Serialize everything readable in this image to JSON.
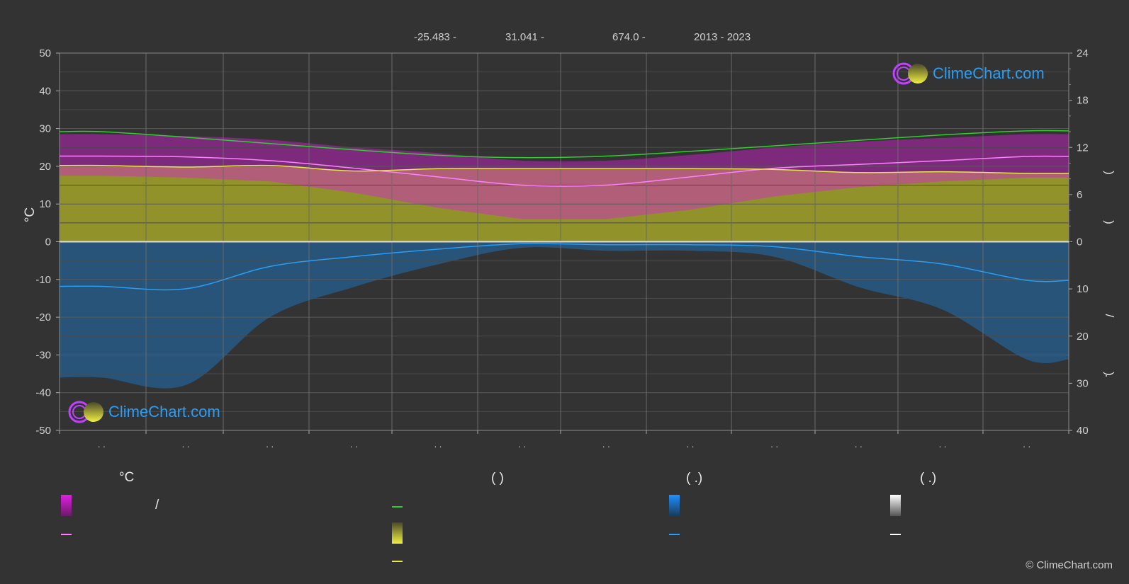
{
  "header": {
    "lat": "-25.483 -",
    "lon": "31.041 -",
    "elev": "674.0 -",
    "years": "2013 - 2023"
  },
  "logo_text": "ClimeChart.com",
  "copyright": "© ClimeChart.com",
  "legend": {
    "col1_title": "°C",
    "col1_slash": "/",
    "col2_title": "(          )",
    "col3_title": "(   .)",
    "col4_title": "(   .)"
  },
  "colors": {
    "background": "#333333",
    "grid": "#5a5a5a",
    "temp_range": "#d81ed8",
    "temp_mean": "#ff80ff",
    "daylight": "#33cc33",
    "sunshine_fill": "#a3a32a",
    "sunshine_line": "#e8e84a",
    "rain_fill": "#1e6fb0",
    "rain_line": "#2a9df4",
    "zero_line": "#dddddd"
  },
  "chart_data": {
    "type": "line",
    "y_left": {
      "label": "°C",
      "ylim": [
        -50,
        50
      ],
      "ticks": [
        50,
        40,
        30,
        20,
        10,
        0,
        -10,
        -20,
        -30,
        -40,
        -50
      ]
    },
    "y_right_top": {
      "ticks": [
        24,
        18,
        12,
        6,
        0
      ],
      "range": [
        0,
        24
      ]
    },
    "y_right_bottom": {
      "ticks": [
        0,
        10,
        20,
        30,
        40
      ],
      "range": [
        0,
        40
      ]
    },
    "x": {
      "months": 12,
      "tick_labels": [
        ". .",
        ". .",
        ". .",
        ". .",
        ". .",
        ". .",
        ". .",
        ". .",
        ". .",
        ". .",
        ". .",
        ". ."
      ]
    },
    "grid": true,
    "series": [
      {
        "key": "daylight",
        "unit": "h",
        "values": [
          14.0,
          13.3,
          12.5,
          11.7,
          11.0,
          10.7,
          10.9,
          11.5,
          12.2,
          12.9,
          13.6,
          14.1
        ]
      },
      {
        "key": "temp_mean",
        "unit": "°C",
        "values": [
          22.7,
          22.5,
          21.5,
          19.5,
          17.2,
          15.0,
          15.0,
          17.2,
          19.5,
          20.5,
          21.5,
          22.6
        ]
      },
      {
        "key": "sunshine",
        "unit": "h",
        "values": [
          9.7,
          9.5,
          9.7,
          9.0,
          9.3,
          9.3,
          9.3,
          9.3,
          9.2,
          8.8,
          8.9,
          8.7
        ]
      },
      {
        "key": "temp_max_band",
        "unit": "°C",
        "values": [
          28.5,
          28.0,
          27.0,
          25.0,
          23.5,
          21.5,
          21.5,
          23.0,
          25.0,
          26.5,
          27.5,
          28.5
        ]
      },
      {
        "key": "temp_min_band",
        "unit": "°C",
        "values": [
          17.5,
          17.0,
          16.0,
          13.0,
          9.0,
          6.0,
          6.0,
          8.5,
          12.0,
          14.5,
          16.0,
          17.0
        ]
      },
      {
        "key": "rain",
        "unit": "mm/day",
        "values": [
          9.0,
          9.5,
          5.0,
          3.0,
          1.5,
          0.4,
          0.6,
          0.6,
          1.0,
          3.0,
          4.5,
          7.8
        ]
      }
    ]
  }
}
